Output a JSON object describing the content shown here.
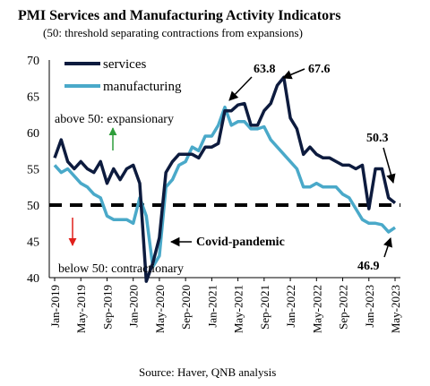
{
  "chart_data": {
    "type": "line",
    "title": "PMI Services and Manufacturing Activity Indicators",
    "subtitle": "(50: threshold separating contractions from expansions)",
    "source": "Source: Haver, QNB analysis",
    "xlabel": "",
    "ylabel": "",
    "ylim": [
      40,
      70
    ],
    "yticks": [
      40,
      45,
      50,
      55,
      60,
      65,
      70
    ],
    "threshold": 50,
    "x": [
      "Jan-2019",
      "Feb-2019",
      "Mar-2019",
      "Apr-2019",
      "May-2019",
      "Jun-2019",
      "Jul-2019",
      "Aug-2019",
      "Sep-2019",
      "Oct-2019",
      "Nov-2019",
      "Dec-2019",
      "Jan-2020",
      "Feb-2020",
      "Mar-2020",
      "Apr-2020",
      "May-2020",
      "Jun-2020",
      "Jul-2020",
      "Aug-2020",
      "Sep-2020",
      "Oct-2020",
      "Nov-2020",
      "Dec-2020",
      "Jan-2021",
      "Feb-2021",
      "Mar-2021",
      "Apr-2021",
      "May-2021",
      "Jun-2021",
      "Jul-2021",
      "Aug-2021",
      "Sep-2021",
      "Oct-2021",
      "Nov-2021",
      "Dec-2021",
      "Jan-2022",
      "Feb-2022",
      "Mar-2022",
      "Apr-2022",
      "May-2022",
      "Jun-2022",
      "Jul-2022",
      "Aug-2022",
      "Sep-2022",
      "Oct-2022",
      "Nov-2022",
      "Dec-2022",
      "Jan-2023",
      "Feb-2023",
      "Mar-2023",
      "Apr-2023",
      "May-2023"
    ],
    "xtick_labels": [
      "Jan-2019",
      "May-2019",
      "Sep-2019",
      "Jan-2020",
      "May-2020",
      "Sep-2020",
      "Jan-2021",
      "May-2021",
      "Sep-2021",
      "Jan-2022",
      "May-2022",
      "Sep-2022",
      "Jan-2023",
      "May-2023"
    ],
    "series": [
      {
        "name": "services",
        "color": "#0d1b3e",
        "values": [
          56.5,
          59,
          56,
          55,
          56,
          55,
          54.5,
          56,
          53,
          55,
          53.5,
          55,
          55.5,
          53,
          39.5,
          42,
          45.5,
          54.5,
          56,
          57,
          57,
          57,
          56.5,
          58,
          58,
          58.5,
          63,
          63,
          63.8,
          64,
          61,
          61,
          63,
          64,
          66.5,
          67.6,
          62,
          60.5,
          57,
          58,
          57,
          56.5,
          56.5,
          56,
          55.5,
          55.5,
          55,
          55.5,
          49.5,
          55,
          55,
          51,
          50.3
        ]
      },
      {
        "name": "manufacturing",
        "color": "#4aa9c9",
        "values": [
          55.5,
          54.5,
          55,
          54,
          53,
          52.5,
          51.5,
          51,
          48.5,
          48,
          48,
          48,
          47.5,
          51,
          48.5,
          41.5,
          43,
          52.5,
          53.5,
          55.5,
          56,
          58,
          57.5,
          59.5,
          59.5,
          61,
          63.5,
          61,
          61.5,
          61.5,
          60.5,
          60.5,
          60.8,
          59,
          58,
          57,
          56,
          55,
          52.5,
          52.5,
          53,
          52.5,
          52.5,
          52.5,
          51.5,
          51,
          49.5,
          48,
          47.5,
          47.5,
          47.3,
          46.3,
          46.9
        ]
      }
    ],
    "legend_position": "top-left",
    "annotations": [
      {
        "text": "63.8",
        "style": "bold"
      },
      {
        "text": "67.6",
        "style": "bold"
      },
      {
        "text": "50.3",
        "style": "bold"
      },
      {
        "text": "46.9",
        "style": "bold"
      },
      {
        "text": "Covid-pandemic",
        "style": "bold"
      },
      {
        "text": "above 50: expansionary",
        "style": "normal"
      },
      {
        "text": "below 50: contractionary",
        "style": "normal"
      }
    ]
  }
}
